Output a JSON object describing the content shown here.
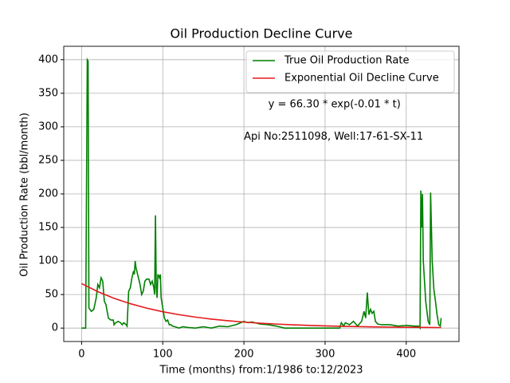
{
  "chart_data": {
    "type": "line",
    "title": "Oil Production Decline Curve",
    "xlabel": "Time (months) from:1/1986 to:12/2023",
    "ylabel": "Oil Production Rate (bbl/month)",
    "annotations": [
      "y = 66.30 * exp(-0.01 * t)",
      "Api No:2511098, Well:17-61-SX-11"
    ],
    "xlim": [
      -22,
      465
    ],
    "ylim": [
      -20,
      420
    ],
    "xticks": [
      0,
      100,
      200,
      300,
      400
    ],
    "yticks": [
      0,
      50,
      100,
      150,
      200,
      250,
      300,
      350,
      400
    ],
    "grid": true,
    "legend": "upper right",
    "series": [
      {
        "name": "True Oil Production Rate",
        "color": "#008000",
        "x": [
          0,
          5,
          7,
          8,
          9,
          12,
          15,
          18,
          20,
          22,
          24,
          26,
          28,
          30,
          33,
          36,
          39,
          40,
          42,
          45,
          48,
          50,
          52,
          55,
          56,
          58,
          60,
          62,
          64,
          65,
          66,
          67,
          68,
          70,
          72,
          74,
          76,
          78,
          80,
          83,
          85,
          87,
          89,
          90,
          91,
          92,
          93,
          94,
          96,
          97,
          98,
          100,
          102,
          104,
          106,
          108,
          110,
          112,
          115,
          120,
          125,
          130,
          140,
          150,
          160,
          170,
          180,
          190,
          200,
          205,
          210,
          220,
          230,
          240,
          250,
          300,
          318,
          320,
          323,
          325,
          330,
          335,
          340,
          345,
          348,
          350,
          352,
          354,
          356,
          358,
          360,
          362,
          365,
          370,
          380,
          390,
          400,
          410,
          415,
          417,
          418,
          419,
          420,
          421,
          424,
          427,
          429,
          430,
          432,
          434,
          436,
          438,
          440,
          442,
          443
        ],
        "values": [
          0,
          0,
          400,
          398,
          30,
          25,
          28,
          45,
          65,
          60,
          75,
          70,
          40,
          35,
          15,
          12,
          12,
          5,
          8,
          10,
          8,
          5,
          8,
          5,
          3,
          55,
          60,
          75,
          85,
          80,
          100,
          90,
          85,
          75,
          65,
          50,
          55,
          70,
          73,
          73,
          65,
          70,
          60,
          50,
          168,
          60,
          45,
          80,
          75,
          80,
          45,
          30,
          15,
          10,
          12,
          5,
          5,
          3,
          2,
          0,
          2,
          1,
          0,
          2,
          0,
          3,
          2,
          5,
          10,
          8,
          9,
          6,
          5,
          3,
          0,
          0,
          0,
          8,
          3,
          8,
          5,
          10,
          3,
          10,
          25,
          15,
          53,
          20,
          28,
          22,
          25,
          10,
          6,
          5,
          5,
          3,
          4,
          3,
          3,
          0,
          205,
          150,
          200,
          100,
          40,
          10,
          5,
          202,
          100,
          58,
          40,
          20,
          5,
          3,
          15
        ]
      },
      {
        "name": "Exponential Oil Decline Curve",
        "color": "#e31a1c",
        "x": [
          0,
          20,
          40,
          60,
          80,
          100,
          120,
          140,
          160,
          180,
          200,
          220,
          240,
          260,
          280,
          300,
          320,
          340,
          360,
          380,
          400,
          420,
          440,
          443
        ],
        "values": [
          66.3,
          54.3,
          44.4,
          36.4,
          29.8,
          24.4,
          20.0,
          16.4,
          13.4,
          11.0,
          9.0,
          7.3,
          6.0,
          4.9,
          4.0,
          3.3,
          2.7,
          2.2,
          1.8,
          1.5,
          1.2,
          1.0,
          0.8,
          0.8
        ]
      }
    ]
  }
}
